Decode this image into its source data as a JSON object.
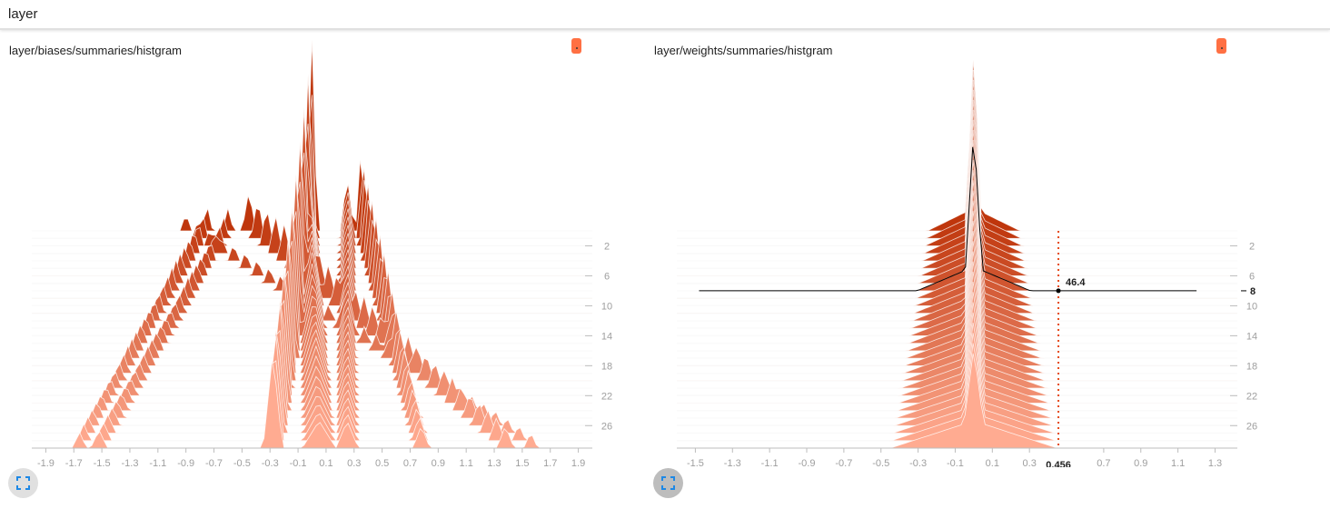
{
  "header": {
    "title": "layer"
  },
  "colors": {
    "accent": "#ff7043",
    "ridge_old": "#bf360c",
    "ridge_new": "#ffab91"
  },
  "cards": [
    {
      "title": "layer/biases/summaries/histgram",
      "expand_icon": "fullscreen-icon",
      "swatch_icon": "run-color-icon"
    },
    {
      "title": "layer/weights/summaries/histgram",
      "expand_icon": "fullscreen-icon",
      "swatch_icon": "run-color-icon"
    }
  ],
  "chart_data": [
    {
      "type": "histogram-offset",
      "title": "layer/biases/summaries/histgram",
      "xlim": [
        -2.0,
        2.0
      ],
      "x_ticks": [
        "-1.9",
        "-1.7",
        "-1.5",
        "-1.3",
        "-1.1",
        "-0.9",
        "-0.7",
        "-0.5",
        "-0.3",
        "-0.1",
        "0.1",
        "0.3",
        "0.5",
        "0.7",
        "0.9",
        "1.1",
        "1.3",
        "1.5",
        "1.7",
        "1.9"
      ],
      "x_tick_values": [
        -1.9,
        -1.7,
        -1.5,
        -1.3,
        -1.1,
        -0.9,
        -0.7,
        -0.5,
        -0.3,
        -0.1,
        0.1,
        0.3,
        0.5,
        0.7,
        0.9,
        1.1,
        1.3,
        1.5,
        1.7,
        1.9
      ],
      "steps": [
        0,
        29
      ],
      "y_ticks": [
        "2",
        "6",
        "10",
        "14",
        "18",
        "22",
        "26"
      ],
      "y_tick_values": [
        2,
        6,
        10,
        14,
        18,
        22,
        26
      ],
      "peaks_start": [
        {
          "x": 0.0,
          "h": 210,
          "w": 0.04
        },
        {
          "x": -0.03,
          "h": 90,
          "w": 0.06
        },
        {
          "x": 0.25,
          "h": 60,
          "w": 0.05
        },
        {
          "x": 0.35,
          "h": 95,
          "w": 0.04
        },
        {
          "x": -0.45,
          "h": 45,
          "w": 0.05
        },
        {
          "x": -0.6,
          "h": 25,
          "w": 0.04
        },
        {
          "x": -0.75,
          "h": 30,
          "w": 0.04
        },
        {
          "x": -0.9,
          "h": 20,
          "w": 0.04
        }
      ],
      "peaks_end": [
        {
          "x": -0.28,
          "h": 105,
          "w": 0.07
        },
        {
          "x": 0.05,
          "h": 30,
          "w": 0.12
        },
        {
          "x": 0.25,
          "h": 30,
          "w": 0.08
        },
        {
          "x": 0.78,
          "h": 25,
          "w": 0.06
        },
        {
          "x": 1.38,
          "h": 25,
          "w": 0.06
        },
        {
          "x": -1.52,
          "h": 20,
          "w": 0.06
        },
        {
          "x": -1.66,
          "h": 18,
          "w": 0.05
        },
        {
          "x": 1.56,
          "h": 18,
          "w": 0.05
        }
      ],
      "hover": null
    },
    {
      "type": "histogram-offset",
      "title": "layer/weights/summaries/histgram",
      "xlim": [
        -1.6,
        1.42
      ],
      "x_ticks": [
        "-1.5",
        "-1.3",
        "-1.1",
        "-0.9",
        "-0.7",
        "-0.5",
        "-0.3",
        "-0.1",
        "0.1",
        "0.3",
        "0.7",
        "0.9",
        "1.1",
        "1.3"
      ],
      "x_tick_values": [
        -1.5,
        -1.3,
        -1.1,
        -0.9,
        -0.7,
        -0.5,
        -0.3,
        -0.1,
        0.1,
        0.3,
        0.7,
        0.9,
        1.1,
        1.3
      ],
      "steps": [
        0,
        29
      ],
      "y_ticks": [
        "2",
        "6",
        "10",
        "14",
        "18",
        "22",
        "26"
      ],
      "y_tick_values": [
        2,
        6,
        10,
        14,
        18,
        22,
        26
      ],
      "peaks_start": [
        {
          "x": 0.0,
          "h": 205,
          "w": 0.045
        },
        {
          "x": 0.0,
          "h": 25,
          "w": 0.25
        }
      ],
      "peaks_end": [
        {
          "x": 0.0,
          "h": 110,
          "w": 0.07
        },
        {
          "x": 0.0,
          "h": 30,
          "w": 0.45
        }
      ],
      "hover": {
        "x_label": "0.456",
        "x_value": 0.456,
        "step_label": "8",
        "step": 8,
        "count_label": "46.4"
      }
    }
  ]
}
